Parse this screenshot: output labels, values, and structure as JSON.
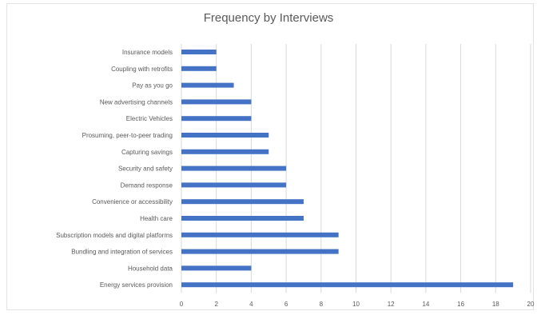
{
  "chart_data": {
    "type": "bar",
    "orientation": "horizontal",
    "title": "Frequency by Interviews",
    "xlabel": "",
    "ylabel": "",
    "xlim": [
      0,
      20
    ],
    "x_ticks": [
      0,
      2,
      4,
      6,
      8,
      10,
      12,
      14,
      16,
      18,
      20
    ],
    "grid": "vertical",
    "bar_color": "#4472c4",
    "categories": [
      "Insurance models",
      "Coupling with retrofits",
      "Pay as you go",
      "New advertising channels",
      "Electric Vehicles",
      "Prosuming, peer-to-peer trading",
      "Capturing savings",
      "Security and safety",
      "Demand response",
      "Convenience or accessibility",
      "Health care",
      "Subscription models and digital platforms",
      "Bundling and integration of services",
      "Household data",
      "Energy services provision"
    ],
    "values": [
      2,
      2,
      3,
      4,
      4,
      5,
      5,
      6,
      6,
      7,
      7,
      9,
      9,
      4,
      19
    ]
  }
}
